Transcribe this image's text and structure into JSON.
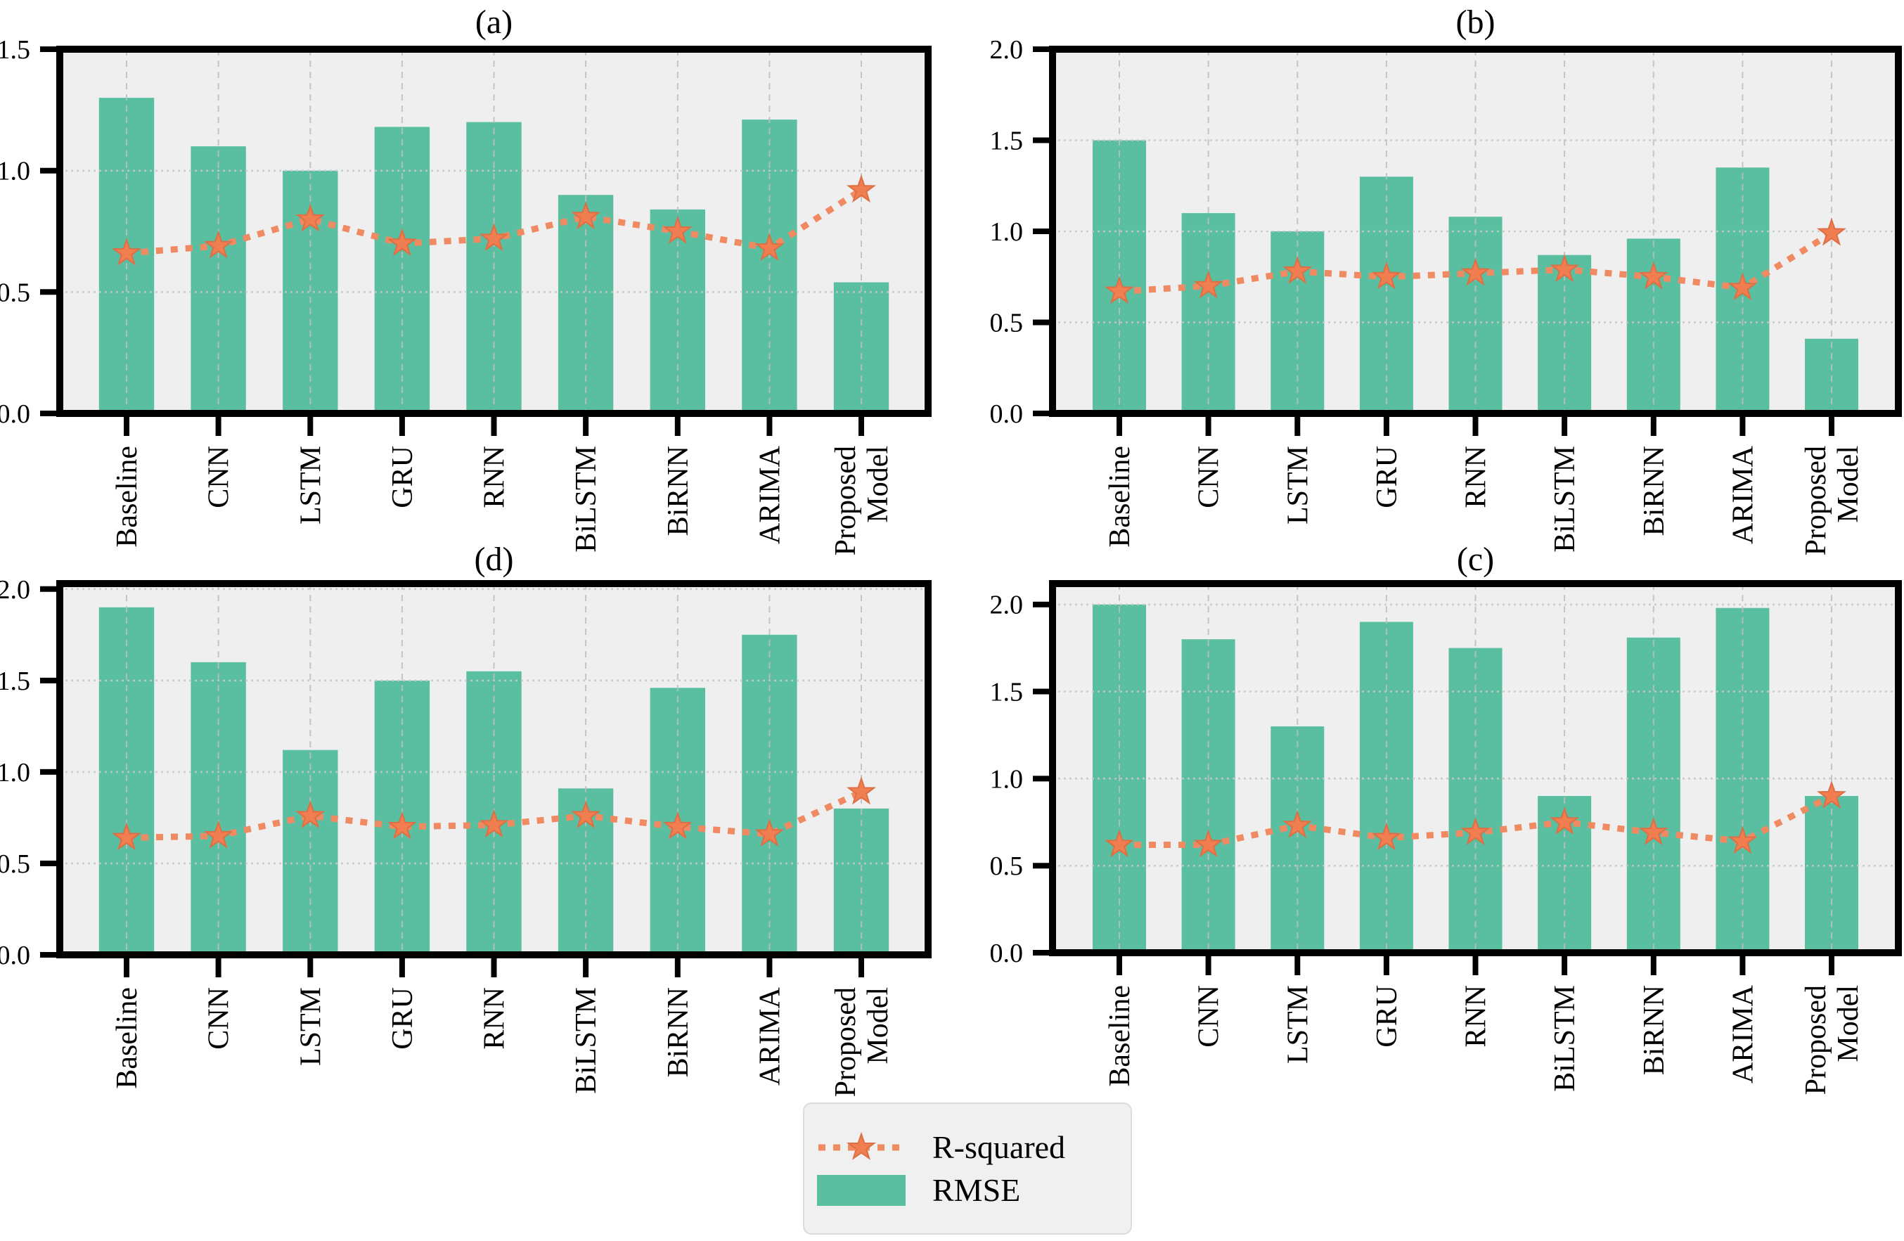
{
  "colors": {
    "bar": "#5abfa0",
    "line": "#f08a62",
    "star": "#f07e50",
    "star_edge": "#dd6f45",
    "axes_bg": "#efefef",
    "grid_h": "#c6c6c6",
    "grid_v": "#bdbdbd",
    "spine": "#000000",
    "legend_bg": "#f0f0f0",
    "legend_border": "#dcdcdc"
  },
  "legend": {
    "entries": [
      {
        "label": "R-squared",
        "marker": "dotted-line-star"
      },
      {
        "label": "RMSE",
        "marker": "bar-swatch"
      }
    ]
  },
  "chart_data": [
    {
      "id": "a",
      "title": "(a)",
      "type": "bar+line",
      "categories": [
        "Baseline",
        "CNN",
        "LSTM",
        "GRU",
        "RNN",
        "BiLSTM",
        "BiRNN",
        "ARIMA",
        "Proposed\nModel"
      ],
      "series": [
        {
          "name": "RMSE",
          "type": "bar",
          "values": [
            1.3,
            1.1,
            1.0,
            1.18,
            1.2,
            0.9,
            0.84,
            1.21,
            0.54
          ]
        },
        {
          "name": "R-squared",
          "type": "line",
          "values": [
            0.66,
            0.69,
            0.8,
            0.7,
            0.72,
            0.81,
            0.75,
            0.68,
            0.92
          ]
        }
      ],
      "ylim": [
        0,
        1.5
      ],
      "yticks": [
        0.0,
        0.5,
        1.0,
        1.5
      ],
      "grid": true,
      "legend_position": "none"
    },
    {
      "id": "b",
      "title": "(b)",
      "type": "bar+line",
      "categories": [
        "Baseline",
        "CNN",
        "LSTM",
        "GRU",
        "RNN",
        "BiLSTM",
        "BiRNN",
        "ARIMA",
        "Proposed\nModel"
      ],
      "series": [
        {
          "name": "RMSE",
          "type": "bar",
          "values": [
            1.5,
            1.1,
            1.0,
            1.3,
            1.08,
            0.87,
            0.96,
            1.35,
            0.41
          ]
        },
        {
          "name": "R-squared",
          "type": "line",
          "values": [
            0.67,
            0.7,
            0.78,
            0.75,
            0.77,
            0.79,
            0.75,
            0.69,
            0.99
          ]
        }
      ],
      "ylim": [
        0,
        2.0
      ],
      "yticks": [
        0.0,
        0.5,
        1.0,
        1.5,
        2.0
      ],
      "grid": true,
      "legend_position": "none"
    },
    {
      "id": "d",
      "title": "(d)",
      "type": "bar+line",
      "categories": [
        "Baseline",
        "CNN",
        "LSTM",
        "GRU",
        "RNN",
        "BiLSTM",
        "BiRNN",
        "ARIMA",
        "Proposed\nModel"
      ],
      "series": [
        {
          "name": "RMSE",
          "type": "bar",
          "values": [
            1.9,
            1.6,
            1.12,
            1.5,
            1.55,
            0.91,
            1.46,
            1.75,
            0.8
          ]
        },
        {
          "name": "R-squared",
          "type": "line",
          "values": [
            0.64,
            0.65,
            0.76,
            0.7,
            0.71,
            0.76,
            0.7,
            0.66,
            0.89
          ]
        }
      ],
      "ylim": [
        0,
        2.03
      ],
      "yticks": [
        0.0,
        0.5,
        1.0,
        1.5,
        2.0
      ],
      "grid": true,
      "legend_position": "none"
    },
    {
      "id": "c",
      "title": "(c)",
      "type": "bar+line",
      "categories": [
        "Baseline",
        "CNN",
        "LSTM",
        "GRU",
        "RNN",
        "BiLSTM",
        "BiRNN",
        "ARIMA",
        "Proposed\nModel"
      ],
      "series": [
        {
          "name": "RMSE",
          "type": "bar",
          "values": [
            2.0,
            1.8,
            1.3,
            1.9,
            1.75,
            0.9,
            1.81,
            1.98,
            0.9
          ]
        },
        {
          "name": "R-squared",
          "type": "line",
          "values": [
            0.62,
            0.62,
            0.73,
            0.66,
            0.69,
            0.75,
            0.69,
            0.64,
            0.9
          ]
        }
      ],
      "ylim": [
        0,
        2.12
      ],
      "yticks": [
        0.0,
        0.5,
        1.0,
        1.5,
        2.0
      ],
      "grid": true,
      "legend_position": "none"
    }
  ]
}
